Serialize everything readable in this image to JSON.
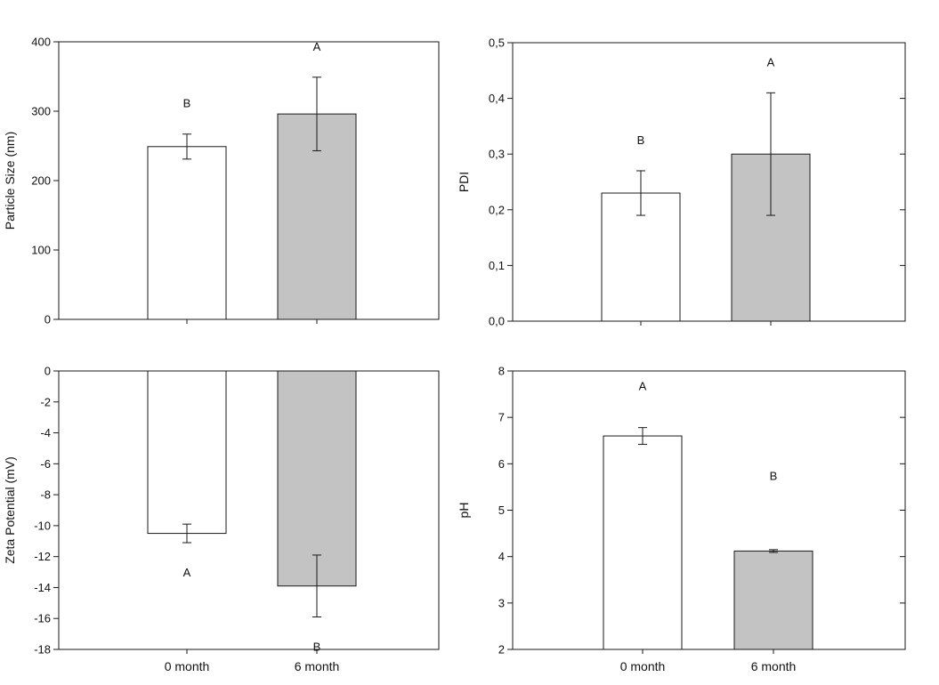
{
  "colors": {
    "bar_0_month": "#ffffff",
    "bar_6_month": "#c3c3c3",
    "axis": "#1a1a1a"
  },
  "chart_data": [
    {
      "type": "bar",
      "categories": [
        "0 month",
        "6 month"
      ],
      "ylabel": "Particle Size (nm)",
      "ylim": [
        0,
        400
      ],
      "yticks": [
        "0",
        "100",
        "200",
        "300",
        "400"
      ],
      "show_category_labels": false,
      "values": [
        249,
        296
      ],
      "errors": [
        18,
        53
      ],
      "letters": [
        "B",
        "A"
      ]
    },
    {
      "type": "bar",
      "categories": [
        "0 month",
        "6 month"
      ],
      "ylabel": "PDI",
      "ylim": [
        0,
        0.5
      ],
      "yticks": [
        "0,0",
        "0,1",
        "0,2",
        "0,3",
        "0,4",
        "0,5"
      ],
      "show_category_labels": false,
      "values": [
        0.23,
        0.3
      ],
      "errors": [
        0.04,
        0.11
      ],
      "letters": [
        "B",
        "A"
      ]
    },
    {
      "type": "bar",
      "categories": [
        "0 month",
        "6 month"
      ],
      "ylabel": "Zeta Potential (mV)",
      "ylim": [
        -18,
        0
      ],
      "yticks": [
        "-18",
        "-16",
        "-14",
        "-12",
        "-10",
        "-8",
        "-6",
        "-4",
        "-2",
        "0"
      ],
      "show_category_labels": true,
      "values": [
        -10.5,
        -13.9
      ],
      "errors": [
        0.6,
        2.0
      ],
      "letters": [
        "A",
        "B"
      ]
    },
    {
      "type": "bar",
      "categories": [
        "0 month",
        "6 month"
      ],
      "ylabel": "pH",
      "ylim": [
        2,
        8
      ],
      "yticks": [
        "2",
        "3",
        "4",
        "5",
        "6",
        "7",
        "8"
      ],
      "show_category_labels": true,
      "values": [
        6.6,
        4.12
      ],
      "errors": [
        0.18,
        0.03
      ],
      "letters": [
        "A",
        "B"
      ]
    }
  ]
}
